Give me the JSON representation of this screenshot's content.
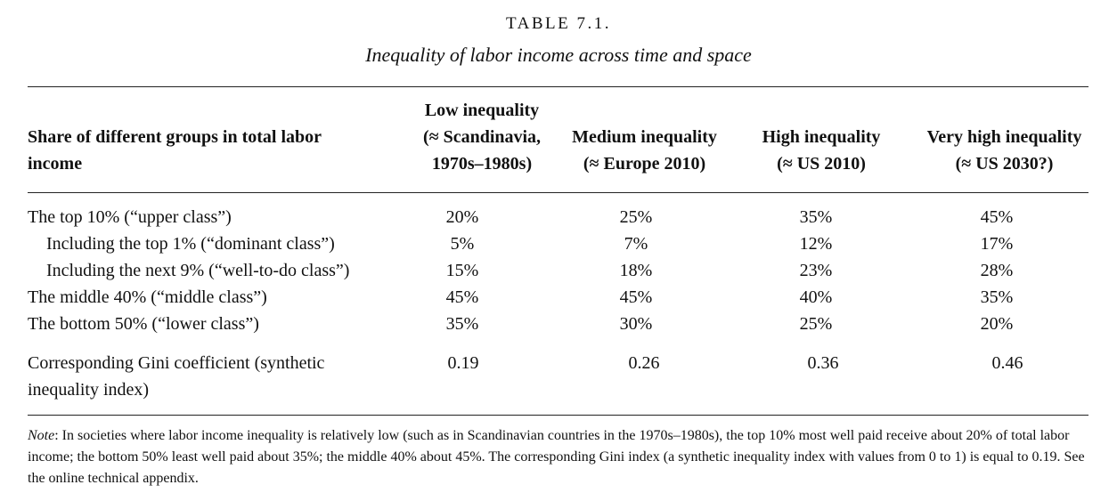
{
  "table": {
    "label": "TABLE 7.1.",
    "title": "Inequality of labor income across time and space",
    "row_header": "Share of different groups in total labor income",
    "columns": [
      {
        "line1": "Low inequality",
        "line2": "(≈ Scandinavia,",
        "line3": "1970s–1980s)"
      },
      {
        "line1": "Medium inequality",
        "line2": "(≈ Europe 2010)"
      },
      {
        "line1": "High inequality",
        "line2": "(≈ US 2010)"
      },
      {
        "line1": "Very high inequality",
        "line2": "(≈ US 2030?)"
      }
    ],
    "rows": [
      {
        "label": "The top 10% (“upper class”)",
        "values": [
          "20%",
          "25%",
          "35%",
          "45%"
        ]
      },
      {
        "label": "Including the top 1% (“dominant class”)",
        "values": [
          "5%",
          "7%",
          "12%",
          "17%"
        ]
      },
      {
        "label": "Including the next 9% (“well-to-do class”)",
        "values": [
          "15%",
          "18%",
          "23%",
          "28%"
        ]
      },
      {
        "label": "The middle 40% (“middle class”)",
        "values": [
          "45%",
          "45%",
          "40%",
          "35%"
        ]
      },
      {
        "label": "The bottom 50% (“lower class”)",
        "values": [
          "35%",
          "30%",
          "25%",
          "20%"
        ]
      }
    ],
    "gini": {
      "label": "Corresponding Gini coefficient (synthetic inequality index)",
      "values": [
        "0.19",
        "0.26",
        "0.36",
        "0.46"
      ]
    },
    "note": {
      "prefix": "Note",
      "text": ": In societies where labor income inequality is relatively low (such as in Scandinavian countries in the 1970s–1980s), the top 10% most well paid receive about 20% of total labor income; the bottom 50% least well paid about 35%; the middle 40% about 45%. The corresponding Gini index (a synthetic inequality index with values from 0 to 1) is equal to 0.19. See the online technical appendix."
    }
  }
}
